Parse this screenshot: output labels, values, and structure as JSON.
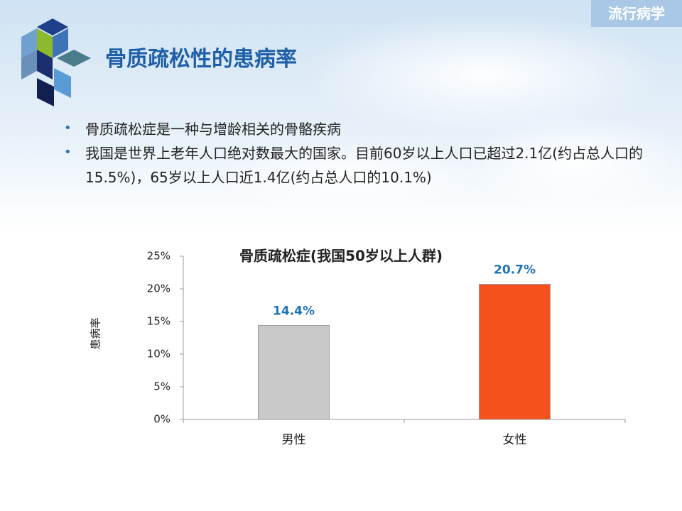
{
  "header": {
    "tag": "流行病学",
    "title": "骨质疏松性的患病率"
  },
  "bullets": [
    "骨质疏松症是一种与增龄相关的骨骼疾病",
    "我国是世界上老年人口绝对数最大的国家。目前60岁以上人口已超过2.1亿(约占总人口的15.5%)，65岁以上人口近1.4亿(约占总人口的10.1%)"
  ],
  "chart_data": {
    "type": "bar",
    "title": "骨质疏松症(我国50岁以上人群)",
    "y_label": "患病率",
    "categories": [
      "男性",
      "女性"
    ],
    "values": [
      14.4,
      20.7
    ],
    "value_labels": [
      "14.4%",
      "20.7%"
    ],
    "colors": [
      "#c9c9c9",
      "#f4511e"
    ],
    "value_label_color": "#1f72b8",
    "ylim": [
      0,
      25
    ],
    "yticks": [
      {
        "value": 0,
        "label": "0%"
      },
      {
        "value": 5,
        "label": "5%"
      },
      {
        "value": 10,
        "label": "10%"
      },
      {
        "value": 15,
        "label": "15%"
      },
      {
        "value": 20,
        "label": "20%"
      },
      {
        "value": 25,
        "label": "25%"
      }
    ],
    "grid": false
  }
}
